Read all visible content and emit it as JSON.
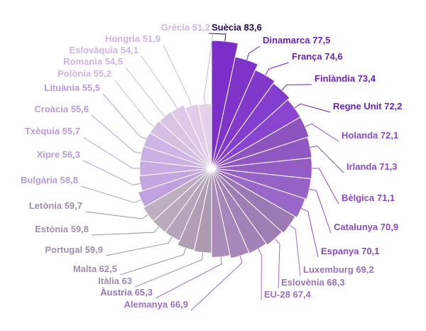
{
  "chart_data": {
    "type": "pie",
    "subtype": "polar-area",
    "title": "",
    "categories": [
      "Suècia",
      "Dinamarca",
      "França",
      "Finlàndia",
      "Regne Unit",
      "Holanda",
      "Irlanda",
      "Bèlgica",
      "Catalunya",
      "Espanya",
      "Luxemburg",
      "Eslovènia",
      "EU-28",
      "Alemanya",
      "Àustria",
      "Itàlia",
      "Malta",
      "Portugal",
      "Estònia",
      "Letònia",
      "Bulgària",
      "Xipre",
      "Txèquia",
      "Croàcia",
      "Lituània",
      "Polònia",
      "Romania",
      "Eslovàquia",
      "Hongria",
      "Grècia"
    ],
    "values": [
      83.6,
      77.5,
      74.6,
      73.4,
      72.2,
      72.1,
      71.3,
      71.1,
      70.9,
      70.1,
      69.2,
      68.3,
      67.4,
      66.9,
      65.3,
      63,
      62.5,
      59.9,
      59.8,
      59.7,
      58.8,
      56.3,
      55.7,
      55.6,
      55.5,
      55.2,
      54.5,
      54.1,
      51.9,
      51.2
    ],
    "labels": [
      "Suècia 83,6",
      "Dinamarca 77,5",
      "França 74,6",
      "Finlàndia 73,4",
      "Regne Unit 72,2",
      "Holanda 72,1",
      "Irlanda 71,3",
      "Bèlgica 71,1",
      "Catalunya 70,9",
      "Espanya 70,1",
      "Luxemburg 69,2",
      "Eslovènia 68,3",
      "EU-28 67,4",
      "Alemanya 66,9",
      "Àustria 65,3",
      "Itàlia 63",
      "Malta 62,5",
      "Portugal 59,9",
      "Estònia 59,8",
      "Letònia 59,7",
      "Bulgària 58,8",
      "Xipre 56,3",
      "Txèquia 55,7",
      "Croàcia 55,6",
      "Lituània 55,5",
      "Polònia 55,2",
      "Romania 54,5",
      "Eslovàquia 54,1",
      "Hongria 51,9",
      "Grècia 51,2"
    ],
    "colors": [
      "#7b2fc8",
      "#7e33c9",
      "#8139cb",
      "#843ecd",
      "#8843cf",
      "#8d54c0",
      "#9058c2",
      "#935dc4",
      "#9662c6",
      "#9967c7",
      "#9c79b3",
      "#a07db5",
      "#a382b7",
      "#a787b9",
      "#aa8cbb",
      "#ad9bb2",
      "#b1a0b5",
      "#b4a5b8",
      "#b8aabb",
      "#bcafbe",
      "#bfa1de",
      "#c3a6e0",
      "#c7abe2",
      "#cab0e3",
      "#ceb5e5",
      "#d4c0e3",
      "#d8c5e6",
      "#dcc9e8",
      "#e0cde9",
      "#e4d2eb"
    ],
    "label_colors": [
      "#2b0a55",
      "#6a23c0",
      "#6a23c0",
      "#6a23c0",
      "#6a23c0",
      "#8a4cc4",
      "#8a4cc4",
      "#8a4cc4",
      "#8a4cc4",
      "#8a4cc4",
      "#9a72bd",
      "#9a72bd",
      "#9a72bd",
      "#9a72bd",
      "#9a72bd",
      "#9e8eaa",
      "#9e8eaa",
      "#9e8eaa",
      "#9e8eaa",
      "#9e8eaa",
      "#b99bd9",
      "#b99bd9",
      "#b99bd9",
      "#b99bd9",
      "#b99bd9",
      "#cdb6df",
      "#cdb6df",
      "#cdb6df",
      "#cdb6df",
      "#cdb6df"
    ]
  }
}
